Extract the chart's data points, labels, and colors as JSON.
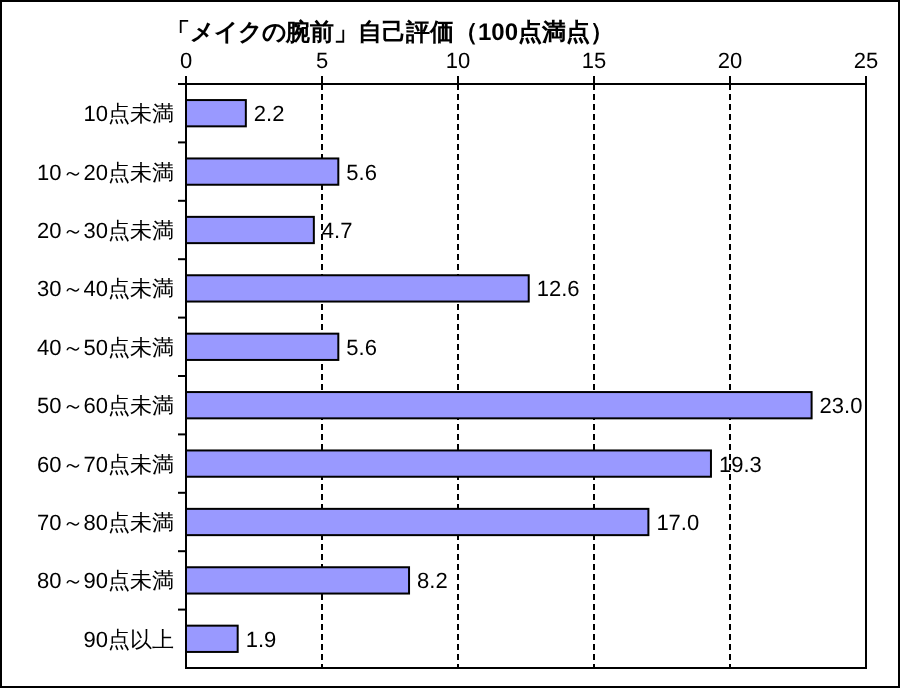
{
  "chart_data": {
    "type": "bar",
    "orientation": "horizontal",
    "title": "「メイクの腕前」自己評価（100点満点）",
    "categories": [
      "10点未満",
      "10～20点未満",
      "20～30点未満",
      "30～40点未満",
      "40～50点未満",
      "50～60点未満",
      "60～70点未満",
      "70～80点未満",
      "80～90点未満",
      "90点以上"
    ],
    "values": [
      2.2,
      5.6,
      4.7,
      12.6,
      5.6,
      23.0,
      19.3,
      17.0,
      8.2,
      1.9
    ],
    "value_labels": [
      "2.2",
      "5.6",
      "4.7",
      "12.6",
      "5.6",
      "23.0",
      "19.3",
      "17.0",
      "8.2",
      "1.9"
    ],
    "color": "#9999ff",
    "xlim": [
      0,
      25
    ],
    "xticks": [
      0,
      5,
      10,
      15,
      20,
      25
    ],
    "grid": "x"
  }
}
